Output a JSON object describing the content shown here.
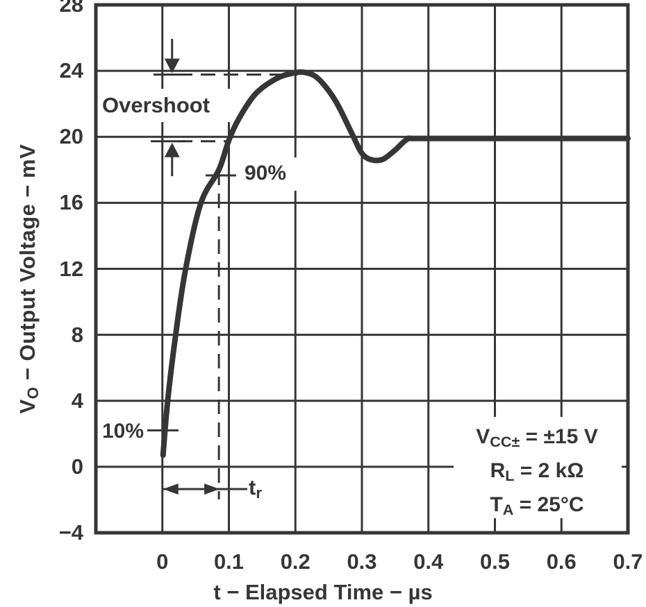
{
  "colors": {
    "ink": "#363636",
    "background": "#ffffff"
  },
  "chart_data": {
    "type": "line",
    "title": "",
    "xlabel": "t − Elapsed Time − µs",
    "ylabel": {
      "main": "V",
      "sub": "O",
      "rest": " − Output Voltage − mV"
    },
    "xlim": [
      -0.1,
      0.7
    ],
    "ylim": [
      -4,
      28
    ],
    "grid": true,
    "legend_position": "none",
    "x_grid_values": [
      -0.1,
      0,
      0.1,
      0.2,
      0.3,
      0.4,
      0.5,
      0.6,
      0.7
    ],
    "y_grid_values": [
      -4,
      0,
      4,
      8,
      12,
      16,
      20,
      24,
      28
    ],
    "x_ticks": [
      {
        "v": 0,
        "label": "0"
      },
      {
        "v": 0.1,
        "label": "0.1"
      },
      {
        "v": 0.2,
        "label": "0.2"
      },
      {
        "v": 0.3,
        "label": "0.3"
      },
      {
        "v": 0.4,
        "label": "0.4"
      },
      {
        "v": 0.5,
        "label": "0.5"
      },
      {
        "v": 0.6,
        "label": "0.6"
      },
      {
        "v": 0.7,
        "label": "0.7"
      }
    ],
    "y_ticks": [
      {
        "v": 28,
        "label": "28"
      },
      {
        "v": 24,
        "label": "24"
      },
      {
        "v": 20,
        "label": "20"
      },
      {
        "v": 16,
        "label": "16"
      },
      {
        "v": 12,
        "label": "12"
      },
      {
        "v": 8,
        "label": "8"
      },
      {
        "v": 4,
        "label": "4"
      },
      {
        "v": 0,
        "label": "0"
      },
      {
        "v": -4,
        "label": "−4"
      }
    ],
    "series": [
      {
        "name": "step-response-output-voltage",
        "points": [
          [
            0.001,
            0.7
          ],
          [
            0.008,
            4
          ],
          [
            0.02,
            8
          ],
          [
            0.035,
            12
          ],
          [
            0.058,
            16
          ],
          [
            0.085,
            18
          ],
          [
            0.1,
            19.8
          ],
          [
            0.115,
            21.1
          ],
          [
            0.14,
            22.6
          ],
          [
            0.17,
            23.5
          ],
          [
            0.195,
            23.85
          ],
          [
            0.215,
            23.9
          ],
          [
            0.235,
            23.5
          ],
          [
            0.26,
            22.2
          ],
          [
            0.285,
            20.2
          ],
          [
            0.3,
            19.0
          ],
          [
            0.315,
            18.6
          ],
          [
            0.332,
            18.65
          ],
          [
            0.35,
            19.2
          ],
          [
            0.368,
            19.85
          ],
          [
            0.384,
            19.9
          ],
          [
            0.5,
            19.9
          ],
          [
            0.7,
            19.9
          ]
        ]
      }
    ]
  },
  "annotations": {
    "overshoot_label": "Overshoot",
    "p90_label": "90%",
    "p10_label": "10%",
    "tr": {
      "main": "t",
      "sub": "r"
    },
    "conditions": [
      {
        "main": "V",
        "sub": "CC±",
        "rest": " = ±15 V"
      },
      {
        "main": "R",
        "sub": "L",
        "rest": " = 2 kΩ"
      },
      {
        "main": "T",
        "sub": "A",
        "rest": " = 25°C"
      }
    ],
    "values": {
      "peak_mV": 23.9,
      "final_mV": 19.9,
      "t90_us": 0.085,
      "v90_mV": 18,
      "v10_mV": 2
    }
  }
}
